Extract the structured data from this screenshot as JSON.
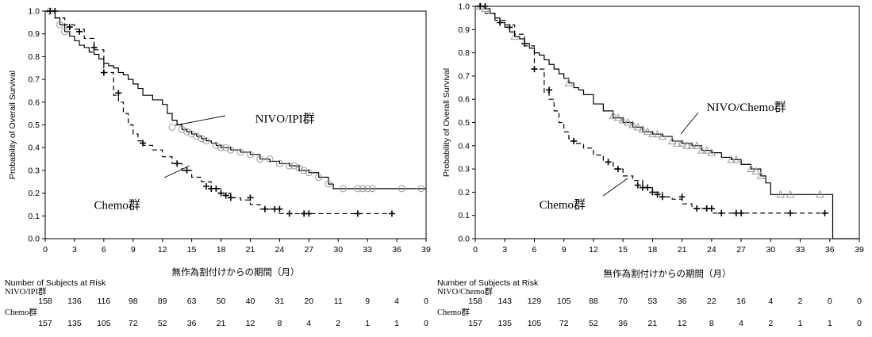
{
  "chart_data": [
    {
      "type": "line",
      "chart_kind": "kaplan-meier",
      "ylabel": "Probability of Overall Survival",
      "xlabel": "無作為割付けからの期間（月）",
      "xlim": [
        0,
        39
      ],
      "ylim": [
        0,
        1.0
      ],
      "x_ticks": [
        "0",
        "3",
        "6",
        "9",
        "12",
        "15",
        "18",
        "21",
        "24",
        "27",
        "30",
        "33",
        "36",
        "39"
      ],
      "y_ticks": [
        "0.0",
        "0.1",
        "0.2",
        "0.3",
        "0.4",
        "0.5",
        "0.6",
        "0.7",
        "0.8",
        "0.9",
        "1.0"
      ],
      "grid": false,
      "series": [
        {
          "name": "NIVO/IPI群",
          "line_style": "solid",
          "color": "#000000",
          "censor_marker": "circle",
          "censor_color": "#999999",
          "x": [
            0,
            0.5,
            1,
            1.5,
            2,
            2.5,
            3,
            3.5,
            4,
            4.5,
            5,
            5.5,
            6,
            6.5,
            7,
            7.5,
            8,
            8.5,
            9,
            9.5,
            10,
            11,
            12,
            12.5,
            13,
            13.5,
            14,
            14.5,
            15,
            15.5,
            16,
            16.5,
            17,
            17.5,
            18,
            19,
            20,
            21,
            22,
            23,
            24,
            25,
            26,
            27,
            28,
            29,
            29.5,
            33,
            36,
            39
          ],
          "y": [
            1.0,
            1.0,
            0.97,
            0.94,
            0.91,
            0.89,
            0.87,
            0.85,
            0.84,
            0.82,
            0.81,
            0.79,
            0.77,
            0.76,
            0.75,
            0.73,
            0.72,
            0.7,
            0.68,
            0.66,
            0.63,
            0.61,
            0.59,
            0.55,
            0.52,
            0.5,
            0.48,
            0.47,
            0.46,
            0.45,
            0.44,
            0.43,
            0.42,
            0.41,
            0.4,
            0.39,
            0.38,
            0.37,
            0.35,
            0.34,
            0.33,
            0.32,
            0.3,
            0.29,
            0.27,
            0.24,
            0.22,
            0.22,
            0.22,
            0.22
          ],
          "censor_x": [
            0.5,
            1.5,
            2,
            13,
            14,
            14.5,
            15,
            15.5,
            16,
            16.5,
            17.5,
            18,
            18.5,
            19,
            20,
            21,
            22,
            23,
            24,
            25,
            25.5,
            26,
            26.5,
            27,
            28,
            29,
            30.5,
            32,
            32.5,
            33,
            33.5,
            36.5,
            38.5
          ],
          "censor_y": [
            1.0,
            0.94,
            0.91,
            0.49,
            0.48,
            0.47,
            0.46,
            0.45,
            0.44,
            0.43,
            0.41,
            0.4,
            0.4,
            0.39,
            0.38,
            0.37,
            0.35,
            0.35,
            0.33,
            0.32,
            0.32,
            0.31,
            0.3,
            0.29,
            0.27,
            0.24,
            0.22,
            0.22,
            0.22,
            0.22,
            0.22,
            0.22,
            0.22
          ]
        },
        {
          "name": "Chemo群",
          "line_style": "dashed",
          "color": "#000000",
          "censor_marker": "plus",
          "x": [
            0,
            1,
            2,
            3,
            4,
            5,
            6,
            7,
            7.5,
            8,
            8.5,
            9,
            9.5,
            10,
            11,
            12,
            13,
            14,
            15,
            16,
            17,
            18,
            19,
            20,
            21,
            22,
            23,
            24,
            26,
            28,
            32,
            34,
            36
          ],
          "y": [
            1.0,
            0.97,
            0.94,
            0.92,
            0.88,
            0.83,
            0.73,
            0.63,
            0.6,
            0.55,
            0.5,
            0.46,
            0.43,
            0.41,
            0.39,
            0.36,
            0.33,
            0.3,
            0.27,
            0.25,
            0.22,
            0.2,
            0.18,
            0.17,
            0.15,
            0.13,
            0.13,
            0.11,
            0.11,
            0.11,
            0.11,
            0.11,
            0.11
          ],
          "censor_x": [
            0.5,
            1,
            2.5,
            3.5,
            5,
            6,
            7.5,
            10,
            13.5,
            14.5,
            16.5,
            17,
            17.5,
            18,
            18.5,
            19,
            21,
            22.5,
            23.5,
            24,
            25,
            26.5,
            27,
            32,
            35.5
          ],
          "censor_y": [
            1.0,
            1.0,
            0.93,
            0.91,
            0.84,
            0.73,
            0.64,
            0.42,
            0.33,
            0.3,
            0.23,
            0.22,
            0.22,
            0.2,
            0.19,
            0.18,
            0.18,
            0.13,
            0.13,
            0.13,
            0.11,
            0.11,
            0.11,
            0.11,
            0.11
          ]
        }
      ],
      "annotations": [
        {
          "text": "NIVO/IPI群",
          "x": 21.5,
          "y": 0.51
        },
        {
          "text": "Chemo群",
          "x": 5,
          "y": 0.13
        }
      ],
      "risk_table": {
        "title": "Number of Subjects at Risk",
        "times": [
          0,
          3,
          6,
          9,
          12,
          15,
          18,
          21,
          24,
          27,
          30,
          33,
          36,
          39
        ],
        "rows": [
          {
            "label": "NIVO/IPI群",
            "values": [
              "158",
              "136",
              "116",
              "98",
              "89",
              "63",
              "50",
              "40",
              "31",
              "20",
              "11",
              "9",
              "4",
              "0"
            ]
          },
          {
            "label": "Chemo群",
            "values": [
              "157",
              "135",
              "105",
              "72",
              "52",
              "36",
              "21",
              "12",
              "8",
              "4",
              "2",
              "1",
              "1",
              "0"
            ]
          }
        ]
      }
    },
    {
      "type": "line",
      "chart_kind": "kaplan-meier",
      "ylabel": "Probability of Overall Survival",
      "xlabel": "無作為割付けからの期間（月）",
      "xlim": [
        0,
        39
      ],
      "ylim": [
        0,
        1.0
      ],
      "x_ticks": [
        "0",
        "3",
        "6",
        "9",
        "12",
        "15",
        "18",
        "21",
        "24",
        "27",
        "30",
        "33",
        "36",
        "39"
      ],
      "y_ticks": [
        "0.0",
        "0.1",
        "0.2",
        "0.3",
        "0.4",
        "0.5",
        "0.6",
        "0.7",
        "0.8",
        "0.9",
        "1.0"
      ],
      "grid": false,
      "series": [
        {
          "name": "NIVO/Chemo群",
          "line_style": "solid",
          "color": "#000000",
          "censor_marker": "triangle",
          "censor_color": "#999999",
          "x": [
            0,
            0.5,
            1,
            1.5,
            2,
            2.5,
            3,
            3.5,
            4,
            4.5,
            5,
            5.5,
            6,
            6.5,
            7,
            7.5,
            8,
            8.5,
            9,
            9.5,
            10,
            10.5,
            11,
            12,
            13,
            14,
            15,
            16,
            17,
            18,
            19,
            20,
            21,
            22,
            23,
            24,
            25,
            26,
            27,
            28,
            29,
            29.5,
            30,
            33,
            36,
            36.3,
            39
          ],
          "y": [
            1.0,
            1.0,
            0.99,
            0.97,
            0.95,
            0.93,
            0.91,
            0.89,
            0.87,
            0.86,
            0.84,
            0.82,
            0.8,
            0.79,
            0.77,
            0.75,
            0.73,
            0.71,
            0.69,
            0.67,
            0.65,
            0.64,
            0.62,
            0.58,
            0.55,
            0.52,
            0.5,
            0.48,
            0.46,
            0.45,
            0.44,
            0.42,
            0.41,
            0.4,
            0.38,
            0.37,
            0.35,
            0.34,
            0.32,
            0.3,
            0.27,
            0.24,
            0.19,
            0.19,
            0.19,
            0.0,
            0.0
          ],
          "censor_x": [
            0.5,
            1,
            4,
            9.5,
            14,
            14.5,
            15,
            15.5,
            16,
            16.5,
            17,
            17.5,
            18,
            18.5,
            19,
            20,
            20.5,
            21,
            21.5,
            22,
            22.5,
            23,
            23.5,
            24,
            26,
            26.5,
            28,
            28.5,
            29,
            31,
            32,
            35
          ],
          "censor_y": [
            1.0,
            0.99,
            0.87,
            0.67,
            0.53,
            0.52,
            0.51,
            0.5,
            0.49,
            0.48,
            0.47,
            0.46,
            0.45,
            0.45,
            0.44,
            0.42,
            0.41,
            0.41,
            0.4,
            0.4,
            0.4,
            0.38,
            0.38,
            0.37,
            0.34,
            0.34,
            0.3,
            0.29,
            0.27,
            0.19,
            0.19,
            0.19
          ]
        },
        {
          "name": "Chemo群",
          "line_style": "dashed",
          "color": "#000000",
          "censor_marker": "plus",
          "x": [
            0,
            1,
            2,
            3,
            4,
            5,
            6,
            7,
            7.5,
            8,
            8.5,
            9,
            9.5,
            10,
            11,
            12,
            13,
            14,
            15,
            16,
            17,
            18,
            19,
            20,
            21,
            22,
            23,
            24,
            26,
            28,
            32,
            34,
            36
          ],
          "y": [
            1.0,
            0.97,
            0.94,
            0.92,
            0.88,
            0.83,
            0.73,
            0.63,
            0.6,
            0.55,
            0.5,
            0.46,
            0.43,
            0.41,
            0.39,
            0.36,
            0.33,
            0.3,
            0.27,
            0.25,
            0.22,
            0.2,
            0.18,
            0.17,
            0.15,
            0.13,
            0.13,
            0.11,
            0.11,
            0.11,
            0.11,
            0.11,
            0.11
          ],
          "censor_x": [
            0.5,
            1,
            2.5,
            3.5,
            5,
            6,
            7.5,
            10,
            13.5,
            14.5,
            16.5,
            17,
            17.5,
            18,
            18.5,
            19,
            21,
            22.5,
            23.5,
            24,
            25,
            26.5,
            27,
            32,
            35.5
          ],
          "censor_y": [
            1.0,
            1.0,
            0.93,
            0.91,
            0.84,
            0.73,
            0.64,
            0.42,
            0.33,
            0.3,
            0.23,
            0.22,
            0.22,
            0.2,
            0.19,
            0.18,
            0.18,
            0.13,
            0.13,
            0.13,
            0.11,
            0.11,
            0.11,
            0.11,
            0.11
          ]
        }
      ],
      "annotations": [
        {
          "text": "NIVO/Chemo群",
          "x": 23.5,
          "y": 0.55
        },
        {
          "text": "Chemo群",
          "x": 6.5,
          "y": 0.13
        }
      ],
      "risk_table": {
        "title": "Number of Subjects at Risk",
        "times": [
          0,
          3,
          6,
          9,
          12,
          15,
          18,
          21,
          24,
          27,
          30,
          33,
          36,
          39
        ],
        "rows": [
          {
            "label": "NIVO/Chemo群",
            "values": [
              "158",
              "143",
              "129",
              "105",
              "88",
              "70",
              "53",
              "36",
              "22",
              "16",
              "4",
              "2",
              "0",
              "0"
            ]
          },
          {
            "label": "Chemo群",
            "values": [
              "157",
              "135",
              "105",
              "72",
              "52",
              "36",
              "21",
              "12",
              "8",
              "4",
              "2",
              "1",
              "1",
              "0"
            ]
          }
        ]
      }
    }
  ]
}
